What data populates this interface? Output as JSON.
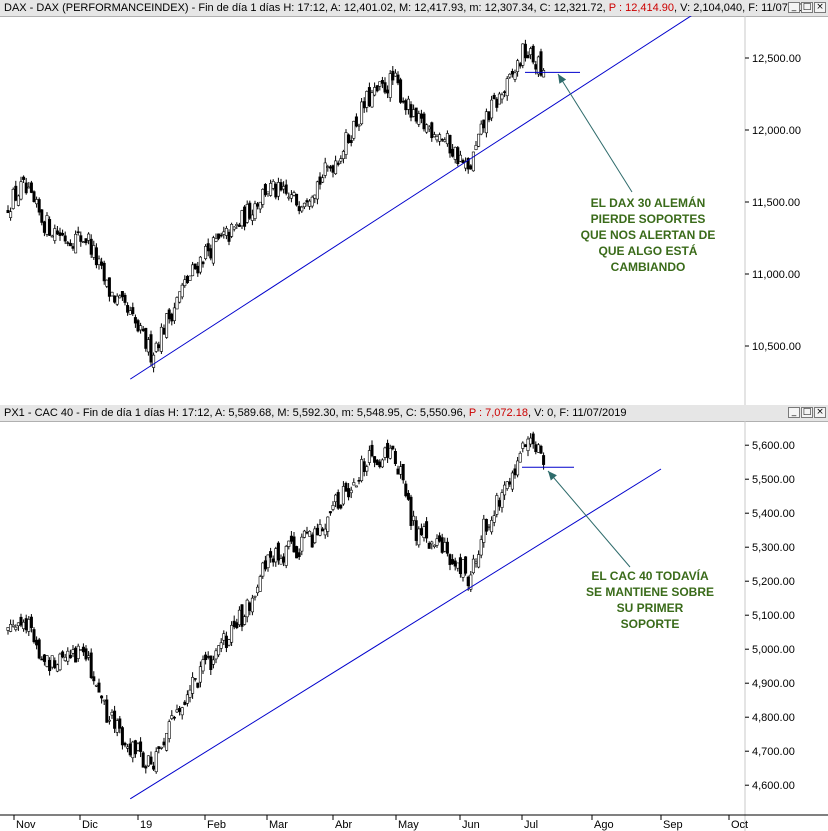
{
  "colors": {
    "trendline": "#0000cc",
    "annotation": "#3a6b1a",
    "arrow": "#2e6b6b",
    "header_red": "#cc0000"
  },
  "icons": [
    "minimize-icon",
    "maximize-icon",
    "close-icon"
  ],
  "x_axis": {
    "labels": [
      "Nov",
      "Dic",
      "19",
      "Feb",
      "Mar",
      "Abr",
      "May",
      "Jun",
      "Jul",
      "Ago",
      "Sep",
      "Oct"
    ]
  },
  "dax": {
    "header": {
      "name": "DAX - DAX (PERFORMANCEINDEX) - Fin de día 1 días",
      "h": "H: 17:12",
      "a": "A: 12,401.02",
      "m": "M: 12,417.93",
      "mn": "m: 12,307.34",
      "c": "C: 12,321.72",
      "p": "P : 12,414.90",
      "v": "V: 2,104,040",
      "f": "F: 11/07/201"
    },
    "annotation": [
      "EL DAX 30 ALEMÁN",
      "PIERDE SOPORTES",
      "QUE NOS ALERTAN DE",
      "QUE ALGO ESTÁ",
      "CAMBIANDO"
    ]
  },
  "cac": {
    "header": {
      "name": "PX1 - CAC 40 - Fin de día 1 días",
      "h": "H: 17:12",
      "a": "A: 5,589.68",
      "m": "M: 5,592.30",
      "mn": "m: 5,548.95",
      "c": "C: 5,550.96",
      "p": "P : 7,072.18",
      "v": "V: 0",
      "f": "F: 11/07/2019"
    },
    "annotation": [
      "EL CAC 40 TODAVÍA",
      "SE MANTIENE SOBRE",
      "SU PRIMER",
      "SOPORTE"
    ]
  },
  "chart_data": [
    {
      "type": "candlestick",
      "title": "DAX - DAX (PERFORMANCEINDEX)",
      "ylim": [
        10250,
        12750
      ],
      "yticks": [
        "10,500.00",
        "11,000.00",
        "11,500.00",
        "12,000.00",
        "12,500.00"
      ],
      "ytick_values": [
        10500,
        11000,
        11500,
        12000,
        12500
      ],
      "x": [
        "Oct-26",
        "Nov-05",
        "Nov-15",
        "Nov-25",
        "Dic-05",
        "Dic-15",
        "Dic-27",
        "Ene-07",
        "Ene-21",
        "Feb-01",
        "Feb-15",
        "Mar-01",
        "Mar-15",
        "Mar-25",
        "Abr-05",
        "Abr-17",
        "Abr-30",
        "May-10",
        "May-20",
        "May-31",
        "Jun-05",
        "Jun-14",
        "Jun-24",
        "Jul-02",
        "Jul-08",
        "Jul-11"
      ],
      "close": [
        11450,
        11600,
        11350,
        11250,
        11250,
        10900,
        10700,
        10450,
        10900,
        11150,
        11300,
        11600,
        11500,
        11650,
        11850,
        12200,
        12350,
        12050,
        12000,
        11800,
        11700,
        12100,
        12300,
        12550,
        12450,
        12322
      ],
      "trendline": {
        "from": {
          "x": "Dic-27",
          "y": 10270
        },
        "to": {
          "x": "Sep-15",
          "y": 12800
        }
      },
      "support_level": 12400
    },
    {
      "type": "candlestick",
      "title": "PX1 - CAC 40",
      "ylim": [
        4530,
        5630
      ],
      "yticks": [
        "4,600.00",
        "4,700.00",
        "4,800.00",
        "4,900.00",
        "5,000.00",
        "5,100.00",
        "5,200.00",
        "5,300.00",
        "5,400.00",
        "5,500.00",
        "5,600.00"
      ],
      "ytick_values": [
        4600,
        4700,
        4800,
        4900,
        5000,
        5100,
        5200,
        5300,
        5400,
        5500,
        5600
      ],
      "x": [
        "Oct-26",
        "Nov-05",
        "Nov-15",
        "Nov-25",
        "Dic-05",
        "Dic-15",
        "Dic-27",
        "Ene-07",
        "Ene-21",
        "Feb-01",
        "Feb-15",
        "Mar-01",
        "Mar-15",
        "Mar-25",
        "Abr-05",
        "Abr-17",
        "Abr-30",
        "May-10",
        "May-20",
        "May-31",
        "Jun-05",
        "Jun-14",
        "Jun-24",
        "Jul-02",
        "Jul-08",
        "Jul-11"
      ],
      "close": [
        5050,
        5100,
        4950,
        5000,
        4980,
        4800,
        4720,
        4650,
        4850,
        4950,
        5050,
        5250,
        5300,
        5350,
        5450,
        5550,
        5580,
        5350,
        5300,
        5250,
        5200,
        5380,
        5500,
        5600,
        5580,
        5551
      ],
      "trendline": {
        "from": {
          "x": "Dic-27",
          "y": 4560
        },
        "to": {
          "x": "Ago-31",
          "y": 5530
        }
      },
      "support_level": 5535
    }
  ]
}
